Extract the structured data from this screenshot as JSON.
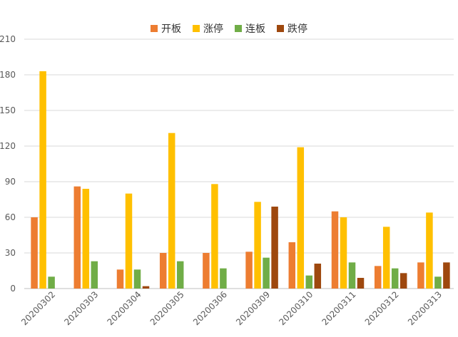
{
  "chart_data": {
    "type": "bar",
    "title": "",
    "xlabel": "",
    "ylabel": "",
    "ylim": [
      0,
      210
    ],
    "yticks": [
      0,
      30,
      60,
      90,
      120,
      150,
      180,
      210
    ],
    "grid": true,
    "legend_position": "top-center",
    "categories": [
      "20200302",
      "20200303",
      "20200304",
      "20200305",
      "20200306",
      "20200309",
      "20200310",
      "20200311",
      "20200312",
      "20200313"
    ],
    "series": [
      {
        "name": "开板",
        "color": "#ED7D31",
        "values": [
          60,
          86,
          16,
          30,
          30,
          31,
          39,
          65,
          19,
          22
        ]
      },
      {
        "name": "涨停",
        "color": "#FFC000",
        "values": [
          183,
          84,
          80,
          131,
          88,
          73,
          119,
          60,
          52,
          64
        ]
      },
      {
        "name": "连板",
        "color": "#70AD47",
        "values": [
          10,
          23,
          16,
          23,
          17,
          26,
          11,
          22,
          17,
          10
        ]
      },
      {
        "name": "跌停",
        "color": "#9E480E",
        "values": [
          0,
          0,
          2,
          0,
          0,
          69,
          21,
          9,
          13,
          22
        ]
      }
    ]
  }
}
